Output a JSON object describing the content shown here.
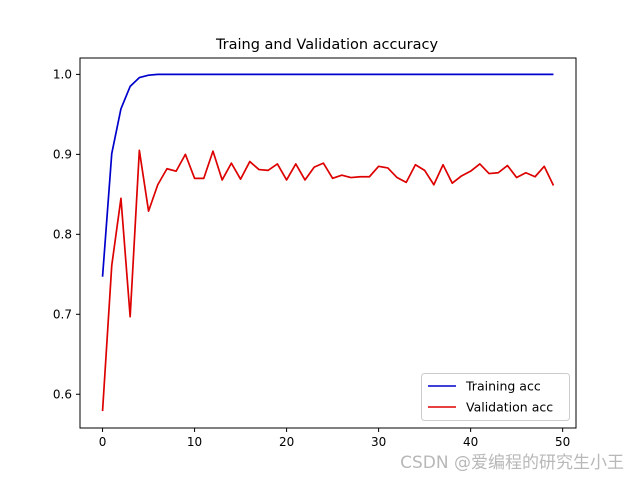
{
  "chart_data": {
    "type": "line",
    "title": "Traing and Validation accuracy",
    "xlabel": "",
    "ylabel": "",
    "xlim": [
      -2.45,
      51.45
    ],
    "ylim": [
      0.5578,
      1.0205
    ],
    "xticks": [
      0,
      10,
      20,
      30,
      40,
      50
    ],
    "yticks": [
      0.6,
      0.7,
      0.8,
      0.9,
      1.0
    ],
    "ytick_labels": [
      "0.6",
      "0.7",
      "0.8",
      "0.9",
      "1.0"
    ],
    "grid": false,
    "legend_position": "lower-right",
    "x": [
      0,
      1,
      2,
      3,
      4,
      5,
      6,
      7,
      8,
      9,
      10,
      11,
      12,
      13,
      14,
      15,
      16,
      17,
      18,
      19,
      20,
      21,
      22,
      23,
      24,
      25,
      26,
      27,
      28,
      29,
      30,
      31,
      32,
      33,
      34,
      35,
      36,
      37,
      38,
      39,
      40,
      41,
      42,
      43,
      44,
      45,
      46,
      47,
      48,
      49
    ],
    "series": [
      {
        "name": "Training acc",
        "color": "#0000cc",
        "values": [
          0.747,
          0.901,
          0.957,
          0.985,
          0.996,
          0.999,
          1.0,
          1.0,
          1.0,
          1.0,
          1.0,
          1.0,
          1.0,
          1.0,
          1.0,
          1.0,
          1.0,
          1.0,
          1.0,
          1.0,
          1.0,
          1.0,
          1.0,
          1.0,
          1.0,
          1.0,
          1.0,
          1.0,
          1.0,
          1.0,
          1.0,
          1.0,
          1.0,
          1.0,
          1.0,
          1.0,
          1.0,
          1.0,
          1.0,
          1.0,
          1.0,
          1.0,
          1.0,
          1.0,
          1.0,
          1.0,
          1.0,
          1.0,
          1.0,
          1.0
        ]
      },
      {
        "name": "Validation acc",
        "color": "#dd0000",
        "values": [
          0.579,
          0.761,
          0.845,
          0.697,
          0.905,
          0.829,
          0.862,
          0.882,
          0.879,
          0.9,
          0.87,
          0.87,
          0.904,
          0.868,
          0.889,
          0.869,
          0.891,
          0.881,
          0.88,
          0.888,
          0.868,
          0.888,
          0.868,
          0.884,
          0.889,
          0.87,
          0.874,
          0.871,
          0.872,
          0.872,
          0.885,
          0.883,
          0.871,
          0.865,
          0.887,
          0.88,
          0.862,
          0.887,
          0.864,
          0.873,
          0.879,
          0.888,
          0.876,
          0.877,
          0.886,
          0.871,
          0.877,
          0.872,
          0.885,
          0.861
        ]
      }
    ]
  },
  "watermark": "CSDN @爱编程的研究生小王"
}
